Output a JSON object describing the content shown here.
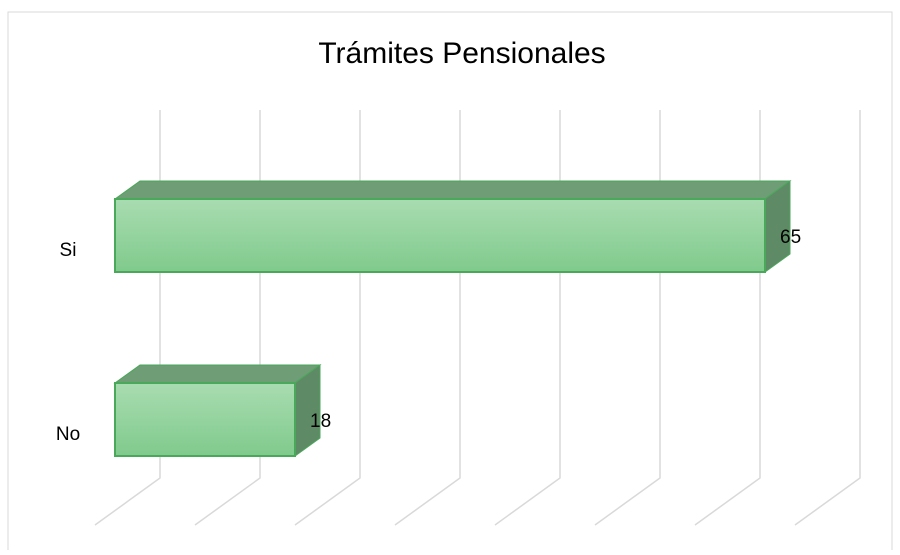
{
  "chart_data": {
    "type": "bar3d",
    "title": "Trámites Pensionales",
    "categories": [
      "Si",
      "No"
    ],
    "values": [
      65,
      18
    ],
    "xlim": [
      0,
      70
    ],
    "xticks": [
      0,
      10,
      20,
      30,
      40,
      50,
      60,
      70
    ],
    "grid": true,
    "colors": {
      "front_top": "#a9dcb1",
      "front_bottom": "#80ca8c",
      "top": "#6e9d76",
      "side": "#5e8a65",
      "edge": "#4aa85a"
    }
  }
}
